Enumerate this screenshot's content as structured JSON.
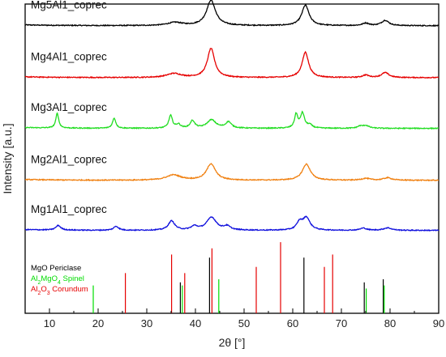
{
  "chart_data": {
    "type": "line",
    "xlabel": "2θ [°]",
    "ylabel": "Intensity [a.u.]",
    "xlim": [
      5,
      90
    ],
    "xticks": [
      10,
      20,
      30,
      40,
      50,
      60,
      70,
      80,
      90
    ],
    "y_tick_labels": "none",
    "grid": false,
    "series": [
      {
        "name": "Mg5Al1_coprec",
        "color": "#000000",
        "baseline": 0.93,
        "peaks": [
          {
            "x": 35.8,
            "h": 0.01,
            "w": 1.8
          },
          {
            "x": 43.2,
            "h": 0.082,
            "w": 1.1
          },
          {
            "x": 62.6,
            "h": 0.066,
            "w": 0.9
          },
          {
            "x": 75.0,
            "h": 0.008,
            "w": 0.8
          },
          {
            "x": 79.0,
            "h": 0.017,
            "w": 0.9
          }
        ]
      },
      {
        "name": "Mg4Al1_coprec",
        "color": "#e60000",
        "baseline": 0.762,
        "peaks": [
          {
            "x": 35.6,
            "h": 0.013,
            "w": 1.8
          },
          {
            "x": 43.2,
            "h": 0.094,
            "w": 0.9
          },
          {
            "x": 62.6,
            "h": 0.082,
            "w": 0.8
          },
          {
            "x": 75.0,
            "h": 0.008,
            "w": 0.8
          },
          {
            "x": 79.0,
            "h": 0.016,
            "w": 0.9
          }
        ]
      },
      {
        "name": "Mg3Al1_coprec",
        "color": "#22dd22",
        "baseline": 0.598,
        "peaks": [
          {
            "x": 11.6,
            "h": 0.048,
            "w": 0.35
          },
          {
            "x": 23.3,
            "h": 0.033,
            "w": 0.4
          },
          {
            "x": 34.9,
            "h": 0.041,
            "w": 0.45
          },
          {
            "x": 36.5,
            "h": 0.012,
            "w": 0.5
          },
          {
            "x": 39.4,
            "h": 0.024,
            "w": 0.55
          },
          {
            "x": 43.3,
            "h": 0.027,
            "w": 1.1
          },
          {
            "x": 46.8,
            "h": 0.02,
            "w": 0.7
          },
          {
            "x": 60.7,
            "h": 0.044,
            "w": 0.4
          },
          {
            "x": 62.0,
            "h": 0.048,
            "w": 0.5
          },
          {
            "x": 63.5,
            "h": 0.01,
            "w": 0.6
          },
          {
            "x": 73.8,
            "h": 0.006,
            "w": 0.6
          },
          {
            "x": 75.0,
            "h": 0.009,
            "w": 0.8
          }
        ]
      },
      {
        "name": "Mg2Al1_coprec",
        "color": "#f08010",
        "baseline": 0.43,
        "peaks": [
          {
            "x": 35.5,
            "h": 0.017,
            "w": 1.8
          },
          {
            "x": 43.2,
            "h": 0.053,
            "w": 1.1
          },
          {
            "x": 62.8,
            "h": 0.052,
            "w": 1.0
          },
          {
            "x": 75.0,
            "h": 0.006,
            "w": 1.0
          },
          {
            "x": 79.5,
            "h": 0.008,
            "w": 1.0
          }
        ]
      },
      {
        "name": "Mg1Al1_coprec",
        "color": "#1010dd",
        "baseline": 0.268,
        "peaks": [
          {
            "x": 11.8,
            "h": 0.015,
            "w": 0.6
          },
          {
            "x": 23.7,
            "h": 0.013,
            "w": 0.6
          },
          {
            "x": 35.1,
            "h": 0.03,
            "w": 0.8
          },
          {
            "x": 39.8,
            "h": 0.012,
            "w": 0.8
          },
          {
            "x": 43.3,
            "h": 0.042,
            "w": 1.2
          },
          {
            "x": 46.5,
            "h": 0.012,
            "w": 0.8
          },
          {
            "x": 61.4,
            "h": 0.024,
            "w": 0.7
          },
          {
            "x": 62.8,
            "h": 0.04,
            "w": 0.9
          },
          {
            "x": 74.5,
            "h": 0.007,
            "w": 0.8
          },
          {
            "x": 79.5,
            "h": 0.008,
            "w": 1.0
          }
        ]
      }
    ],
    "reference_patterns": [
      {
        "name": "MgO Periclase",
        "formula": "MgO",
        "phase": "Periclase",
        "color": "#000000",
        "lines": [
          {
            "x": 36.9,
            "h": 0.1
          },
          {
            "x": 42.9,
            "h": 0.18
          },
          {
            "x": 62.3,
            "h": 0.18
          },
          {
            "x": 74.7,
            "h": 0.1
          },
          {
            "x": 78.6,
            "h": 0.11
          }
        ]
      },
      {
        "name": "Al2MgO4 Spinel",
        "formula": "Al2MgO4",
        "phase": "Spinel",
        "color": "#00dd00",
        "lines": [
          {
            "x": 19.0,
            "h": 0.09
          },
          {
            "x": 37.3,
            "h": 0.09
          },
          {
            "x": 44.8,
            "h": 0.11
          },
          {
            "x": 75.1,
            "h": 0.08
          },
          {
            "x": 78.8,
            "h": 0.09
          }
        ]
      },
      {
        "name": "Al2O3 Corundum",
        "formula": "Al2O3",
        "phase": "Corundum",
        "color": "#e60000",
        "lines": [
          {
            "x": 25.6,
            "h": 0.13
          },
          {
            "x": 35.1,
            "h": 0.19
          },
          {
            "x": 37.8,
            "h": 0.13
          },
          {
            "x": 43.4,
            "h": 0.21
          },
          {
            "x": 52.5,
            "h": 0.15
          },
          {
            "x": 57.5,
            "h": 0.23
          },
          {
            "x": 66.5,
            "h": 0.15
          },
          {
            "x": 68.2,
            "h": 0.19
          }
        ]
      }
    ]
  }
}
